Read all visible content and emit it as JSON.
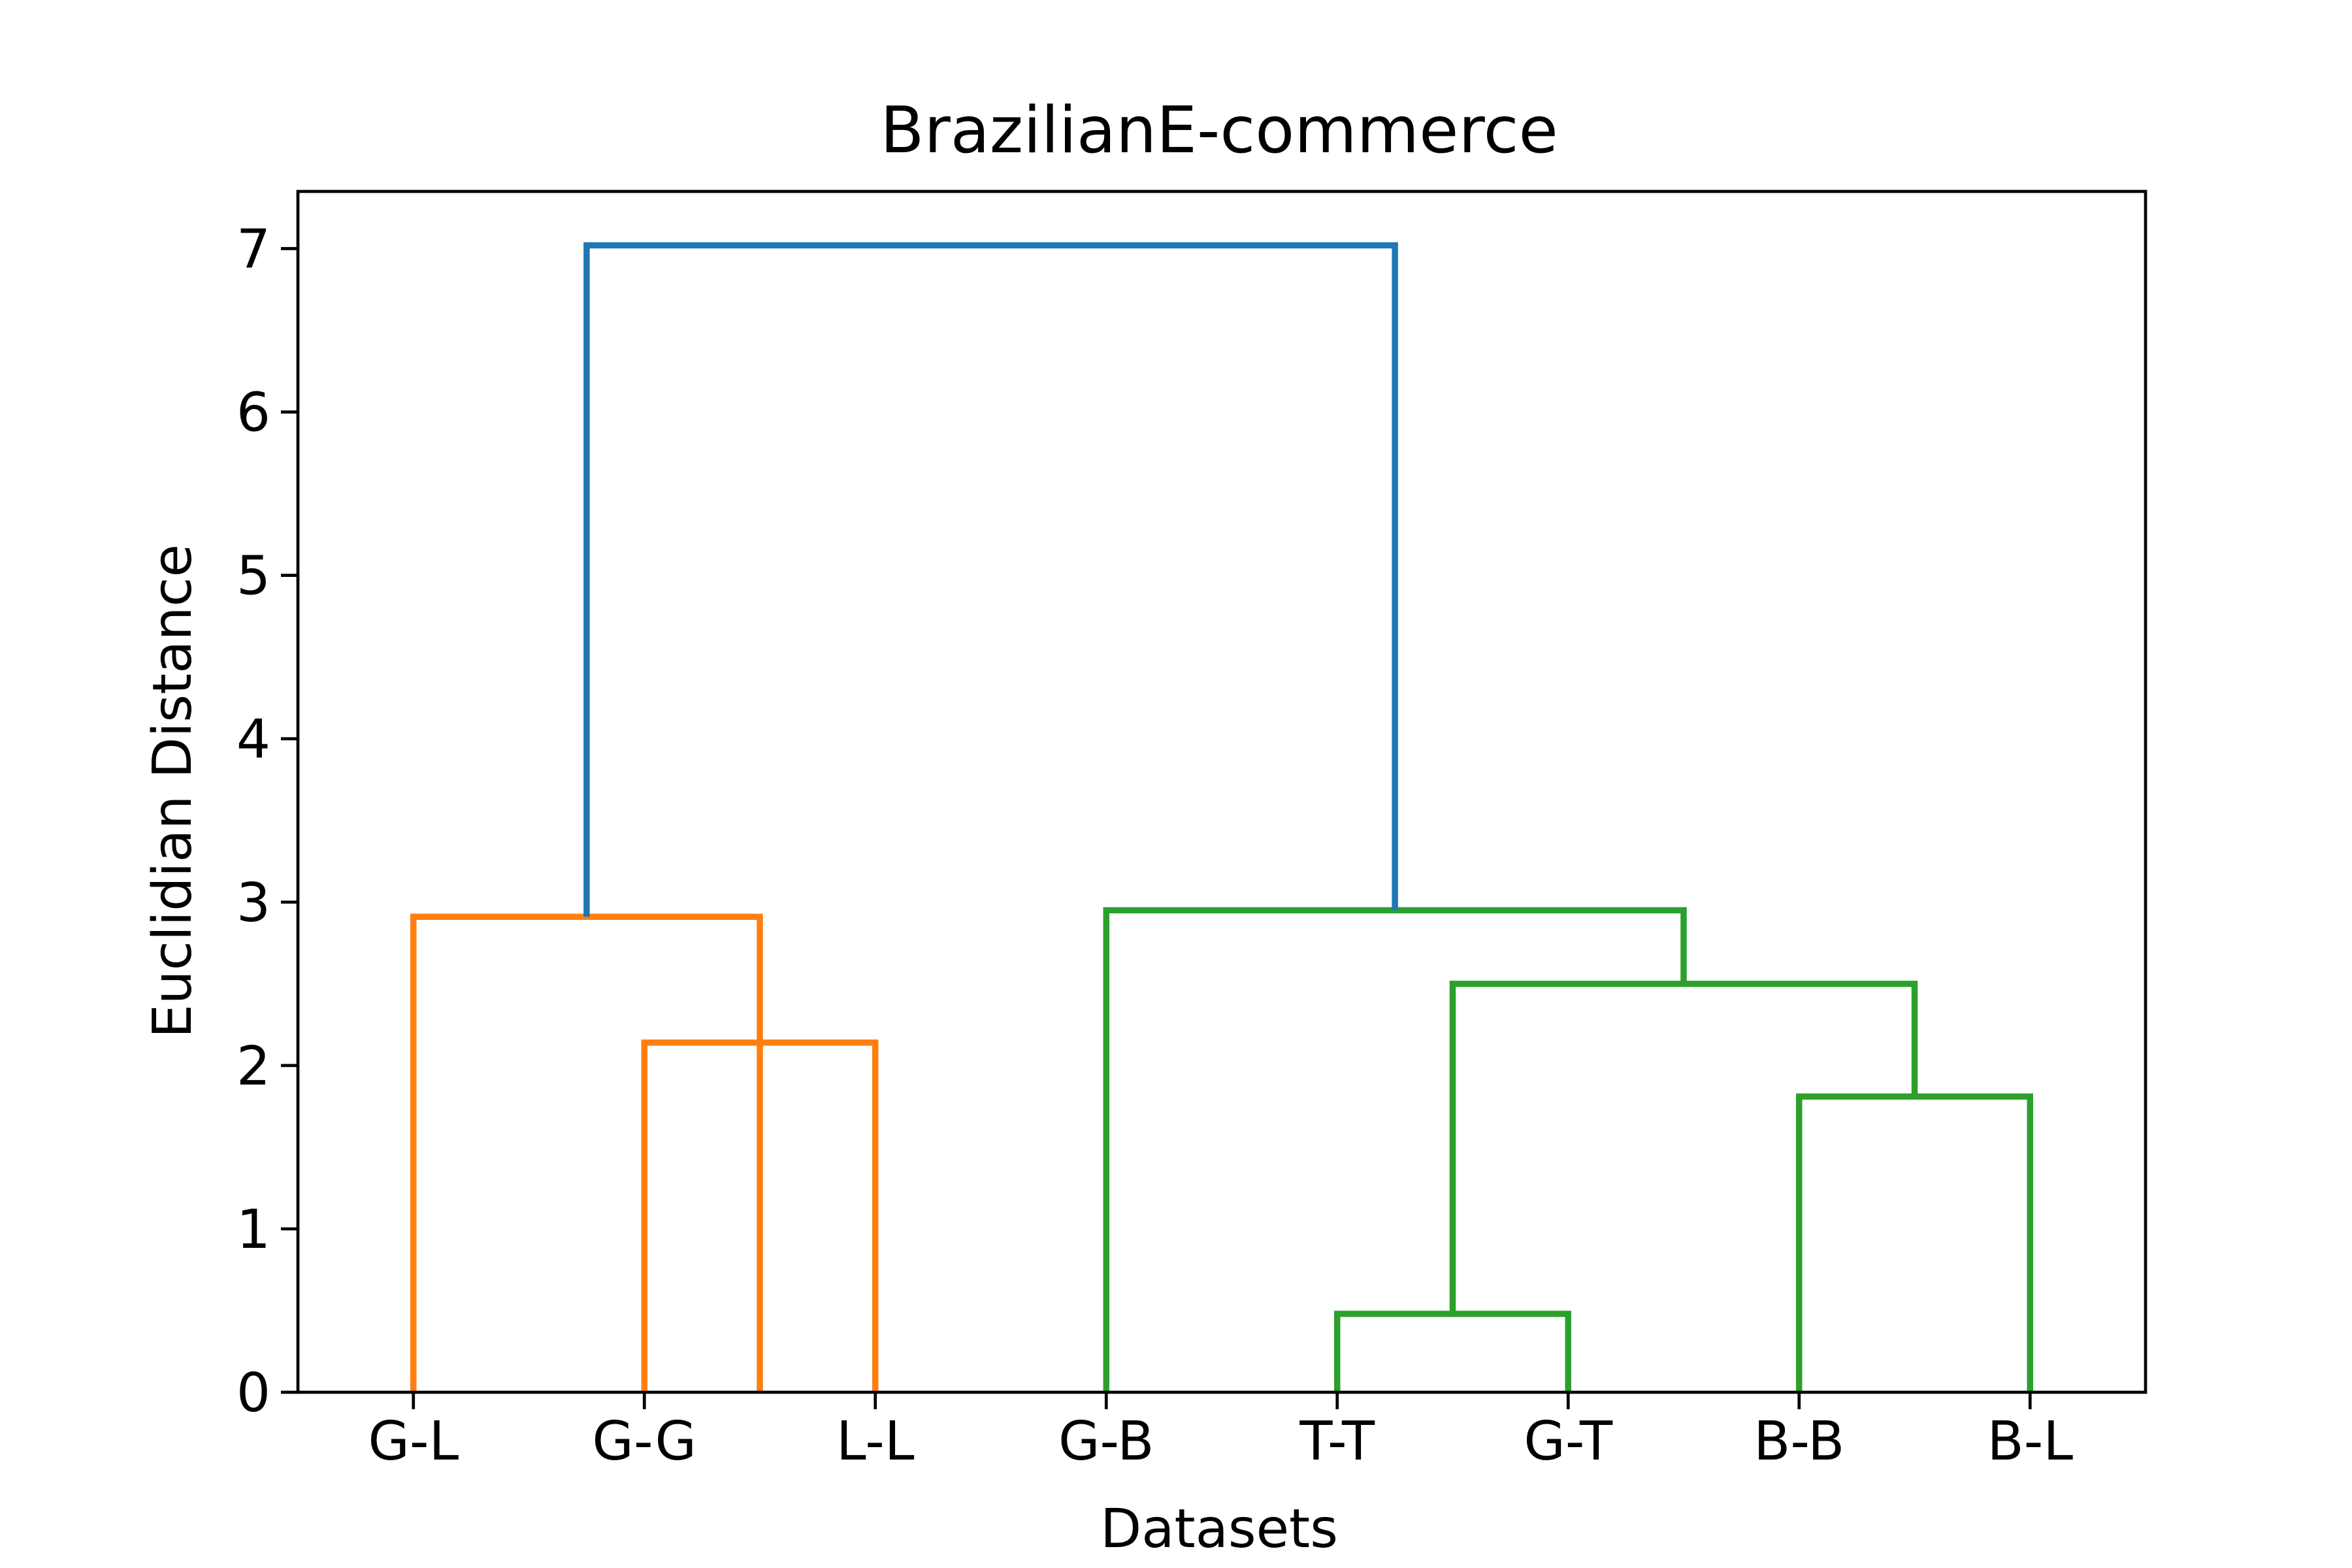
{
  "chart_data": {
    "type": "dendrogram",
    "title": "BrazilianE-commerce",
    "xlabel": "Datasets",
    "ylabel": "Euclidian Distance",
    "ylim": [
      0,
      7.35
    ],
    "yticks": [
      0,
      1,
      2,
      3,
      4,
      5,
      6,
      7
    ],
    "leaves": [
      "G-L",
      "G-G",
      "L-L",
      "G-B",
      "T-T",
      "G-T",
      "B-B",
      "B-L"
    ],
    "grid": false,
    "legend": "none",
    "colors": {
      "cluster_1": "#ff7f0e",
      "cluster_2": "#2ca02c",
      "above_threshold": "#1f77b4"
    },
    "links": [
      {
        "name": "G-G+L-L",
        "left": 1,
        "right": 2,
        "height": 2.14,
        "color": "cluster_1"
      },
      {
        "name": "G-L+(G-G,L-L)",
        "left": 0,
        "right": 1.5,
        "height": 2.91,
        "color": "cluster_1"
      },
      {
        "name": "T-T+G-T",
        "left": 4,
        "right": 5,
        "height": 0.48,
        "color": "cluster_2"
      },
      {
        "name": "B-B+B-L",
        "left": 6,
        "right": 7,
        "height": 1.81,
        "color": "cluster_2"
      },
      {
        "name": "(T-T,G-T)+(B-B,B-L)",
        "left": 4.5,
        "right": 6.5,
        "height": 2.5,
        "color": "cluster_2",
        "left_base": 0.48,
        "right_base": 1.81
      },
      {
        "name": "G-B+rest",
        "left": 3,
        "right": 5.5,
        "height": 2.95,
        "color": "cluster_2",
        "left_base": 0,
        "right_base": 2.5
      },
      {
        "name": "root",
        "left": 0.75,
        "right": 4.25,
        "height": 7.02,
        "color": "above_threshold",
        "left_base": 2.91,
        "right_base": 2.95
      }
    ]
  }
}
